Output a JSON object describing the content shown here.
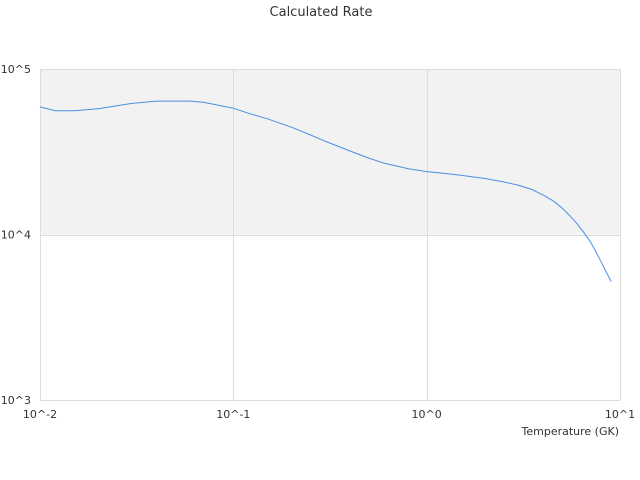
{
  "chart_data": {
    "type": "line",
    "title": "Calculated Rate",
    "xlabel": "Temperature (GK)",
    "ylabel": "",
    "x_scale": "log",
    "y_scale": "log",
    "xlim": [
      0.01,
      10
    ],
    "ylim": [
      1000,
      100000
    ],
    "x_ticks": [
      "10^-2",
      "10^-1",
      "10^0",
      "10^1"
    ],
    "y_ticks": [
      "10^3",
      "10^4",
      "10^5"
    ],
    "grid": true,
    "legend": "none",
    "colors": {
      "line": "#4a90e2",
      "band": "#f2f2f2",
      "grid": "#dddddd"
    },
    "series": [
      {
        "x": [
          0.01,
          0.012,
          0.015,
          0.02,
          0.025,
          0.03,
          0.04,
          0.05,
          0.06,
          0.07,
          0.08,
          0.1,
          0.12,
          0.15,
          0.2,
          0.25,
          0.3,
          0.4,
          0.5,
          0.6,
          0.8,
          1.0,
          1.2,
          1.5,
          2.0,
          2.5,
          3.0,
          3.5,
          4.0,
          4.5,
          5.0,
          5.5,
          6.0,
          6.5,
          7.0,
          7.5,
          8.0,
          8.5,
          9.0
        ],
        "y": [
          59000,
          56000,
          56000,
          57500,
          60000,
          62000,
          64000,
          64000,
          64000,
          63000,
          61000,
          58000,
          54000,
          50000,
          44500,
          40000,
          36500,
          32000,
          29000,
          27000,
          25000,
          24000,
          23500,
          22800,
          21800,
          20800,
          19800,
          18700,
          17300,
          16000,
          14500,
          13000,
          11600,
          10300,
          9100,
          7900,
          6800,
          5900,
          5200
        ]
      }
    ]
  }
}
